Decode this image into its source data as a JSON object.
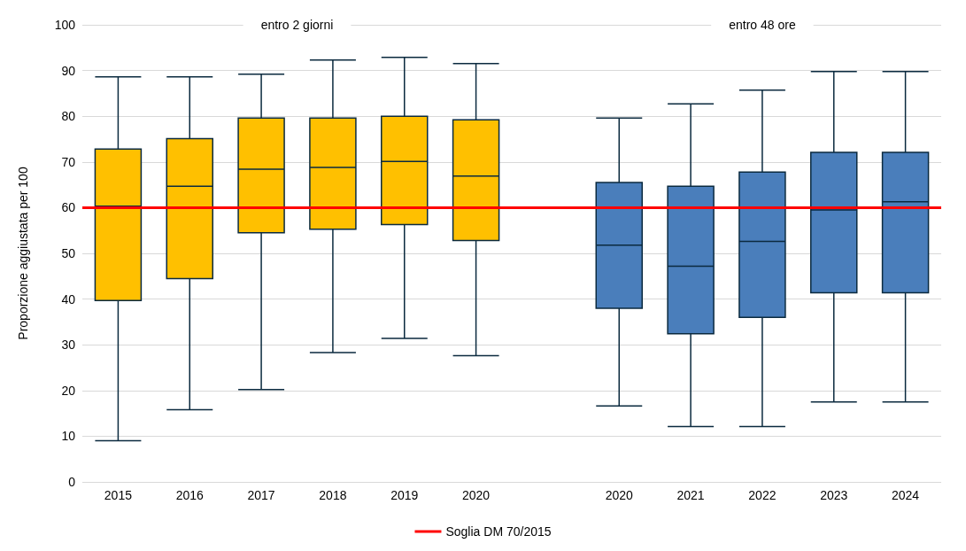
{
  "chart_data": {
    "type": "box",
    "ylabel": "Proporzione aggiustata per 100",
    "categories": [
      "2015",
      "2016",
      "2017",
      "2018",
      "2019",
      "2020",
      null,
      "2020",
      "2021",
      "2022",
      "2023",
      "2024"
    ],
    "series": [
      {
        "color": "#ffc000",
        "boxes": [
          {
            "low": 9,
            "q1": 39.7,
            "median": 60.3,
            "q3": 72.8,
            "high": 88.6
          },
          {
            "low": 15.8,
            "q1": 44.5,
            "median": 64.7,
            "q3": 75.1,
            "high": 88.6
          },
          {
            "low": 20.2,
            "q1": 54.5,
            "median": 68.4,
            "q3": 79.6,
            "high": 89.2
          },
          {
            "low": 28.3,
            "q1": 55.3,
            "median": 68.8,
            "q3": 79.6,
            "high": 92.3
          },
          {
            "low": 31.4,
            "q1": 56.3,
            "median": 70.1,
            "q3": 80,
            "high": 92.9
          },
          {
            "low": 27.6,
            "q1": 52.8,
            "median": 66.9,
            "q3": 79.2,
            "high": 91.5
          },
          null,
          null,
          null,
          null,
          null,
          null
        ]
      },
      {
        "color": "#4a7ebb",
        "boxes": [
          null,
          null,
          null,
          null,
          null,
          null,
          null,
          {
            "low": 16.6,
            "q1": 38,
            "median": 51.8,
            "q3": 65.5,
            "high": 79.6
          },
          {
            "low": 12.1,
            "q1": 32.4,
            "median": 47.2,
            "q3": 64.7,
            "high": 82.7
          },
          {
            "low": 12.1,
            "q1": 36,
            "median": 52.6,
            "q3": 67.8,
            "high": 85.7
          },
          {
            "low": 17.5,
            "q1": 41.4,
            "median": 59.5,
            "q3": 72.1,
            "high": 89.8
          },
          {
            "low": 17.5,
            "q1": 41.4,
            "median": 61.3,
            "q3": 72.1,
            "high": 89.8
          }
        ]
      }
    ],
    "ylim": [
      0,
      100
    ],
    "yticks": [
      0,
      10,
      20,
      30,
      40,
      50,
      60,
      70,
      80,
      90,
      100
    ],
    "grid": "y",
    "ref_lines": [
      {
        "axis": "y",
        "value": 60,
        "label": "Soglia DM 70/2015",
        "color": "#ff0000"
      }
    ],
    "annotations": [
      "entro 2 giorni",
      "entro 48 ore"
    ],
    "legend": "bottom"
  }
}
